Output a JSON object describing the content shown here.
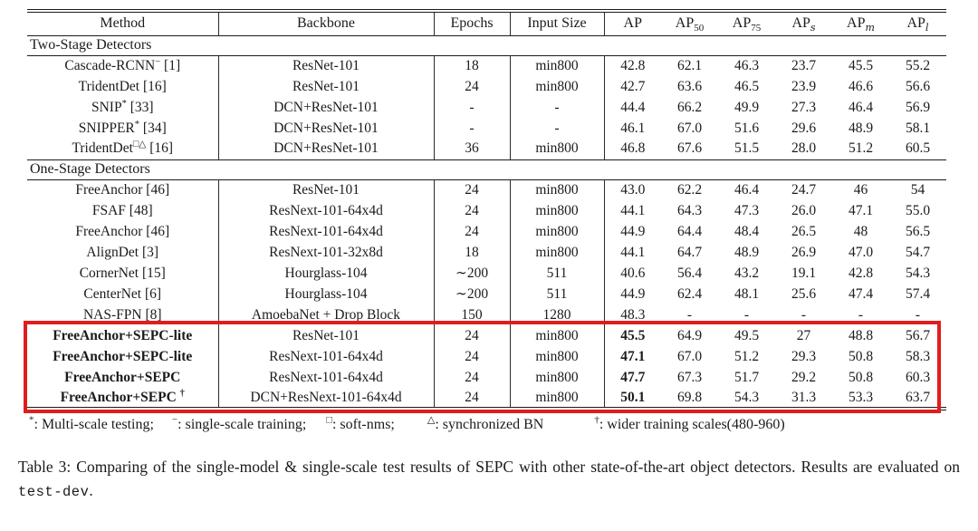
{
  "table": {
    "header": [
      {
        "label": "Method"
      },
      {
        "label": "Backbone"
      },
      {
        "label": "Epochs"
      },
      {
        "label": "Input Size"
      },
      {
        "label": "AP"
      },
      {
        "label": "AP",
        "sub": "50"
      },
      {
        "label": "AP",
        "sub": "75"
      },
      {
        "label": "AP",
        "sub": "s",
        "italic_sub": true
      },
      {
        "label": "AP",
        "sub": "m",
        "italic_sub": true
      },
      {
        "label": "AP",
        "sub": "l",
        "italic_sub": true
      }
    ],
    "sections": [
      {
        "label": "Two-Stage Detectors",
        "rows": [
          {
            "method": "Cascade-RCNN",
            "sup": "−",
            "ref": "[1]",
            "backbone": "ResNet-101",
            "epochs": "18",
            "input_size": "min800",
            "ap": [
              "42.8",
              "62.1",
              "46.3",
              "23.7",
              "45.5",
              "55.2"
            ]
          },
          {
            "method": "TridentDet",
            "ref": "[16]",
            "backbone": "ResNet-101",
            "epochs": "24",
            "input_size": "min800",
            "ap": [
              "42.7",
              "63.6",
              "46.5",
              "23.9",
              "46.6",
              "56.6"
            ]
          },
          {
            "method": "SNIP",
            "sup": "*",
            "ref": "[33]",
            "backbone": "DCN+ResNet-101",
            "epochs": "-",
            "input_size": "-",
            "ap": [
              "44.4",
              "66.2",
              "49.9",
              "27.3",
              "46.4",
              "56.9"
            ]
          },
          {
            "method": "SNIPPER",
            "sup": "*",
            "ref": "[34]",
            "backbone": "DCN+ResNet-101",
            "epochs": "-",
            "input_size": "-",
            "ap": [
              "46.1",
              "67.0",
              "51.6",
              "29.6",
              "48.9",
              "58.1"
            ]
          },
          {
            "method": "TridentDet",
            "sup": "□△",
            "ref": "[16]",
            "backbone": "DCN+ResNet-101",
            "epochs": "36",
            "input_size": "min800",
            "ap": [
              "46.8",
              "67.6",
              "51.5",
              "28.0",
              "51.2",
              "60.5"
            ]
          }
        ]
      },
      {
        "label": "One-Stage Detectors",
        "rows": [
          {
            "method": "FreeAnchor",
            "ref": "[46]",
            "backbone": "ResNet-101",
            "epochs": "24",
            "input_size": "min800",
            "ap": [
              "43.0",
              "62.2",
              "46.4",
              "24.7",
              "46",
              "54"
            ]
          },
          {
            "method": "FSAF",
            "ref": "[48]",
            "backbone": "ResNext-101-64x4d",
            "epochs": "24",
            "input_size": "min800",
            "ap": [
              "44.1",
              "64.3",
              "47.3",
              "26.0",
              "47.1",
              "55.0"
            ]
          },
          {
            "method": "FreeAnchor",
            "ref": "[46]",
            "backbone": "ResNext-101-64x4d",
            "epochs": "24",
            "input_size": "min800",
            "ap": [
              "44.9",
              "64.4",
              "48.4",
              "26.5",
              "48",
              "56.5"
            ]
          },
          {
            "method": "AlignDet",
            "ref": "[3]",
            "backbone": "ResNext-101-32x8d",
            "epochs": "18",
            "input_size": "min800",
            "ap": [
              "44.1",
              "64.7",
              "48.9",
              "26.9",
              "47.0",
              "54.7"
            ]
          },
          {
            "method": "CornerNet",
            "ref": "[15]",
            "backbone": "Hourglass-104",
            "epochs": "∼200",
            "input_size": "511",
            "ap": [
              "40.6",
              "56.4",
              "43.2",
              "19.1",
              "42.8",
              "54.3"
            ]
          },
          {
            "method": "CenterNet",
            "ref": "[6]",
            "backbone": "Hourglass-104",
            "epochs": "∼200",
            "input_size": "511",
            "ap": [
              "44.9",
              "62.4",
              "48.1",
              "25.6",
              "47.4",
              "57.4"
            ]
          },
          {
            "method": "NAS-FPN",
            "ref": "[8]",
            "backbone": "AmoebaNet + Drop Block",
            "epochs": "150",
            "input_size": "1280",
            "ap": [
              "48.3",
              "-",
              "-",
              "-",
              "-",
              "-"
            ]
          },
          {
            "method": "FreeAnchor+SEPC-lite",
            "backbone": "ResNet-101",
            "epochs": "24",
            "input_size": "min800",
            "ap": [
              "45.5",
              "64.9",
              "49.5",
              "27",
              "48.8",
              "56.7"
            ],
            "highlight": true
          },
          {
            "method": "FreeAnchor+SEPC-lite",
            "backbone": "ResNext-101-64x4d",
            "epochs": "24",
            "input_size": "min800",
            "ap": [
              "47.1",
              "67.0",
              "51.2",
              "29.3",
              "50.8",
              "58.3"
            ],
            "highlight": true
          },
          {
            "method": "FreeAnchor+SEPC",
            "backbone": "ResNext-101-64x4d",
            "epochs": "24",
            "input_size": "min800",
            "ap": [
              "47.7",
              "67.3",
              "51.7",
              "29.2",
              "50.8",
              "60.3"
            ],
            "highlight": true
          },
          {
            "method": "FreeAnchor+SEPC",
            "sup": "†",
            "backbone": "DCN+ResNext-101-64x4d",
            "epochs": "24",
            "input_size": "min800",
            "ap": [
              "50.1",
              "69.8",
              "54.3",
              "31.3",
              "53.3",
              "63.7"
            ],
            "highlight": true
          }
        ]
      }
    ]
  },
  "footnote": {
    "items": [
      {
        "symbol": "*",
        "text": ": Multi-scale testing;"
      },
      {
        "symbol": "−",
        "text": ": single-scale training;"
      },
      {
        "symbol": "□",
        "text": ": soft-nms;"
      },
      {
        "symbol": "△",
        "text": ": synchronized BN"
      },
      {
        "symbol": "†",
        "text": ": wider training scales(480-960)"
      }
    ]
  },
  "caption": {
    "label": "Table 3:",
    "text": "Comparing of the single-model & single-scale test results of SEPC with other state-of-the-art object detectors.  Results are evaluated on",
    "code": "test-dev",
    "suffix": "."
  },
  "colors": {
    "highlight_box": "#e01d1d",
    "text": "#1b1b1b"
  }
}
